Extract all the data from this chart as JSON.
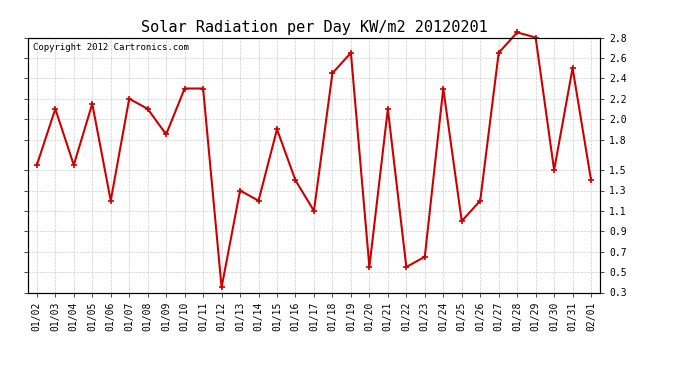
{
  "title": "Solar Radiation per Day KW/m2 20120201",
  "copyright_text": "Copyright 2012 Cartronics.com",
  "dates": [
    "01/02",
    "01/03",
    "01/04",
    "01/05",
    "01/06",
    "01/07",
    "01/08",
    "01/09",
    "01/10",
    "01/11",
    "01/12",
    "01/13",
    "01/14",
    "01/15",
    "01/16",
    "01/17",
    "01/18",
    "01/19",
    "01/20",
    "01/21",
    "01/22",
    "01/23",
    "01/24",
    "01/25",
    "01/26",
    "01/27",
    "01/28",
    "01/29",
    "01/30",
    "01/31",
    "02/01"
  ],
  "values": [
    1.55,
    2.1,
    1.55,
    2.15,
    1.2,
    2.2,
    2.1,
    1.85,
    2.3,
    2.3,
    0.35,
    1.3,
    1.2,
    1.9,
    1.4,
    1.1,
    2.45,
    2.65,
    0.55,
    2.1,
    0.55,
    0.65,
    2.3,
    1.0,
    1.2,
    2.65,
    2.85,
    2.8,
    1.5,
    2.5,
    1.4
  ],
  "line_color": "#cc0000",
  "marker": "+",
  "marker_size": 5,
  "line_width": 1.5,
  "ylim": [
    0.3,
    2.8
  ],
  "right_yticks": [
    0.3,
    0.5,
    0.7,
    0.9,
    1.1,
    1.3,
    1.5,
    1.8,
    2.0,
    2.2,
    2.4,
    2.6,
    2.8
  ],
  "right_ytick_labels": [
    "0.3",
    "0.5",
    "0.7",
    "0.9",
    "1.1",
    "1.3",
    "1.5",
    "1.8",
    "2.0",
    "2.2",
    "2.4",
    "2.6",
    "2.8"
  ],
  "grid_color": "#cccccc",
  "bg_color": "#ffffff",
  "title_fontsize": 11,
  "tick_fontsize": 7,
  "copyright_fontsize": 6.5
}
